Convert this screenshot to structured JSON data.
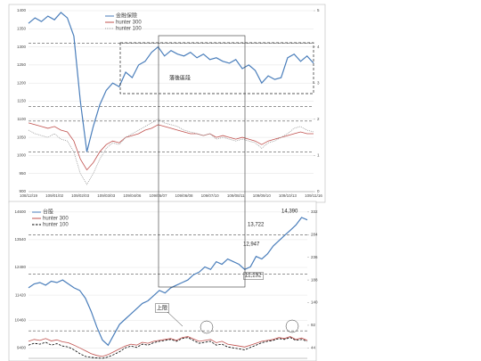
{
  "chart_data": [
    {
      "type": "line",
      "categories": [
        "108/12/19",
        null,
        null,
        null,
        "109/01/02",
        null,
        null,
        null,
        "109/02/03",
        null,
        null,
        null,
        "109/03/03",
        null,
        null,
        null,
        "109/04/06",
        null,
        null,
        null,
        "109/05/07",
        null,
        null,
        null,
        "109/06/08",
        null,
        null,
        null,
        "109/07/10",
        null,
        null,
        null,
        "109/08/11",
        null,
        null,
        null,
        "109/09/10",
        null,
        null,
        null,
        "109/10/13",
        null,
        null,
        null,
        "109/11/16"
      ],
      "series": [
        {
          "name": "金融保險",
          "color": "#4a7ebb",
          "style": "solid",
          "values": [
            1365,
            1380,
            1370,
            1385,
            1375,
            1395,
            1380,
            1330,
            1150,
            1010,
            1080,
            1140,
            1180,
            1200,
            1190,
            1230,
            1215,
            1250,
            1260,
            1285,
            1300,
            1275,
            1290,
            1280,
            1275,
            1285,
            1270,
            1280,
            1265,
            1270,
            1260,
            1255,
            1265,
            1240,
            1250,
            1235,
            1200,
            1220,
            1210,
            1215,
            1270,
            1280,
            1260,
            1275,
            1255
          ]
        },
        {
          "name": "hunter 300",
          "color": "#c0504d",
          "style": "solid",
          "axis": "y2",
          "values": [
            1.9,
            1.85,
            1.8,
            1.75,
            1.8,
            1.7,
            1.65,
            1.4,
            0.9,
            0.6,
            0.8,
            1.1,
            1.3,
            1.4,
            1.35,
            1.5,
            1.55,
            1.6,
            1.7,
            1.75,
            1.85,
            1.8,
            1.75,
            1.7,
            1.65,
            1.6,
            1.6,
            1.55,
            1.6,
            1.5,
            1.55,
            1.5,
            1.45,
            1.5,
            1.45,
            1.4,
            1.3,
            1.4,
            1.45,
            1.5,
            1.55,
            1.6,
            1.65,
            1.6,
            1.6
          ]
        },
        {
          "name": "hunter 100",
          "color": "#999999",
          "style": "dotted",
          "axis": "y2",
          "values": [
            1.7,
            1.6,
            1.55,
            1.5,
            1.6,
            1.45,
            1.4,
            1.1,
            0.5,
            0.2,
            0.5,
            0.9,
            1.2,
            1.35,
            1.3,
            1.5,
            1.6,
            1.7,
            1.8,
            1.9,
            2.0,
            1.9,
            1.85,
            1.8,
            1.7,
            1.65,
            1.6,
            1.55,
            1.6,
            1.45,
            1.5,
            1.45,
            1.4,
            1.45,
            1.4,
            1.35,
            1.2,
            1.35,
            1.4,
            1.5,
            1.6,
            1.75,
            1.8,
            1.7,
            1.65
          ]
        }
      ],
      "ylim": [
        900,
        1400
      ],
      "yticks": [
        900,
        950,
        1000,
        1050,
        1100,
        1150,
        1200,
        1250,
        1300,
        1350,
        1400
      ],
      "y2lim": [
        0,
        5
      ],
      "y2ticks": [
        0,
        1,
        2,
        3,
        4,
        5
      ],
      "grid": true,
      "legend": "top",
      "ref_lines": [
        1310,
        1135,
        1095,
        1010
      ],
      "annotations": [
        "落後區段"
      ]
    },
    {
      "type": "line",
      "series": [
        {
          "name": "台股",
          "color": "#4a7ebb",
          "style": "solid",
          "values": [
            11700,
            11850,
            11900,
            11800,
            11950,
            11900,
            12000,
            11850,
            11700,
            11600,
            11300,
            10800,
            10200,
            9700,
            9500,
            9900,
            10300,
            10500,
            10700,
            10900,
            11100,
            11200,
            11400,
            11600,
            11500,
            11700,
            11800,
            11900,
            12000,
            12200,
            12300,
            12500,
            12400,
            12700,
            12600,
            12800,
            12700,
            12600,
            12400,
            12500,
            12900,
            12800,
            13000,
            13300,
            13500,
            13700,
            13900,
            14100,
            14390,
            14300
          ]
        },
        {
          "name": "hunter 300",
          "color": "#c0504d",
          "style": "solid",
          "axis": "y2",
          "values": [
            58,
            62,
            60,
            64,
            59,
            61,
            57,
            55,
            50,
            44,
            38,
            32,
            28,
            26,
            30,
            36,
            42,
            48,
            52,
            50,
            56,
            54,
            58,
            60,
            62,
            64,
            60,
            66,
            68,
            63,
            58,
            60,
            62,
            55,
            58,
            52,
            50,
            48,
            46,
            50,
            54,
            58,
            60,
            62,
            66,
            64,
            68,
            62,
            65,
            60
          ]
        },
        {
          "name": "hunter 100",
          "color": "#000000",
          "style": "dashed",
          "axis": "y2",
          "values": [
            50,
            54,
            52,
            56,
            50,
            53,
            48,
            46,
            40,
            32,
            26,
            24,
            23,
            22,
            25,
            30,
            36,
            44,
            48,
            45,
            52,
            50,
            55,
            58,
            60,
            62,
            58,
            64,
            66,
            60,
            54,
            56,
            58,
            50,
            52,
            46,
            44,
            42,
            40,
            45,
            50,
            55,
            58,
            60,
            64,
            62,
            66,
            60,
            62,
            58
          ]
        }
      ],
      "ylim": [
        9000,
        14800
      ],
      "yticks": [
        9400,
        10460,
        11420,
        12480,
        13540,
        14600
      ],
      "y2lim": [
        22,
        343
      ],
      "y2ticks": [
        44,
        92,
        140,
        188,
        236,
        284,
        332
      ],
      "grid": true,
      "legend": "top-left",
      "ref_lines": [
        13722,
        12232,
        10050
      ],
      "annotations": [
        {
          "value": 14390,
          "label": "14,390"
        },
        {
          "value": 13722,
          "label": "13,722"
        },
        {
          "value": 12947,
          "label": "12,947"
        },
        {
          "value": 12232,
          "label": "12,232"
        },
        "上限"
      ]
    }
  ]
}
